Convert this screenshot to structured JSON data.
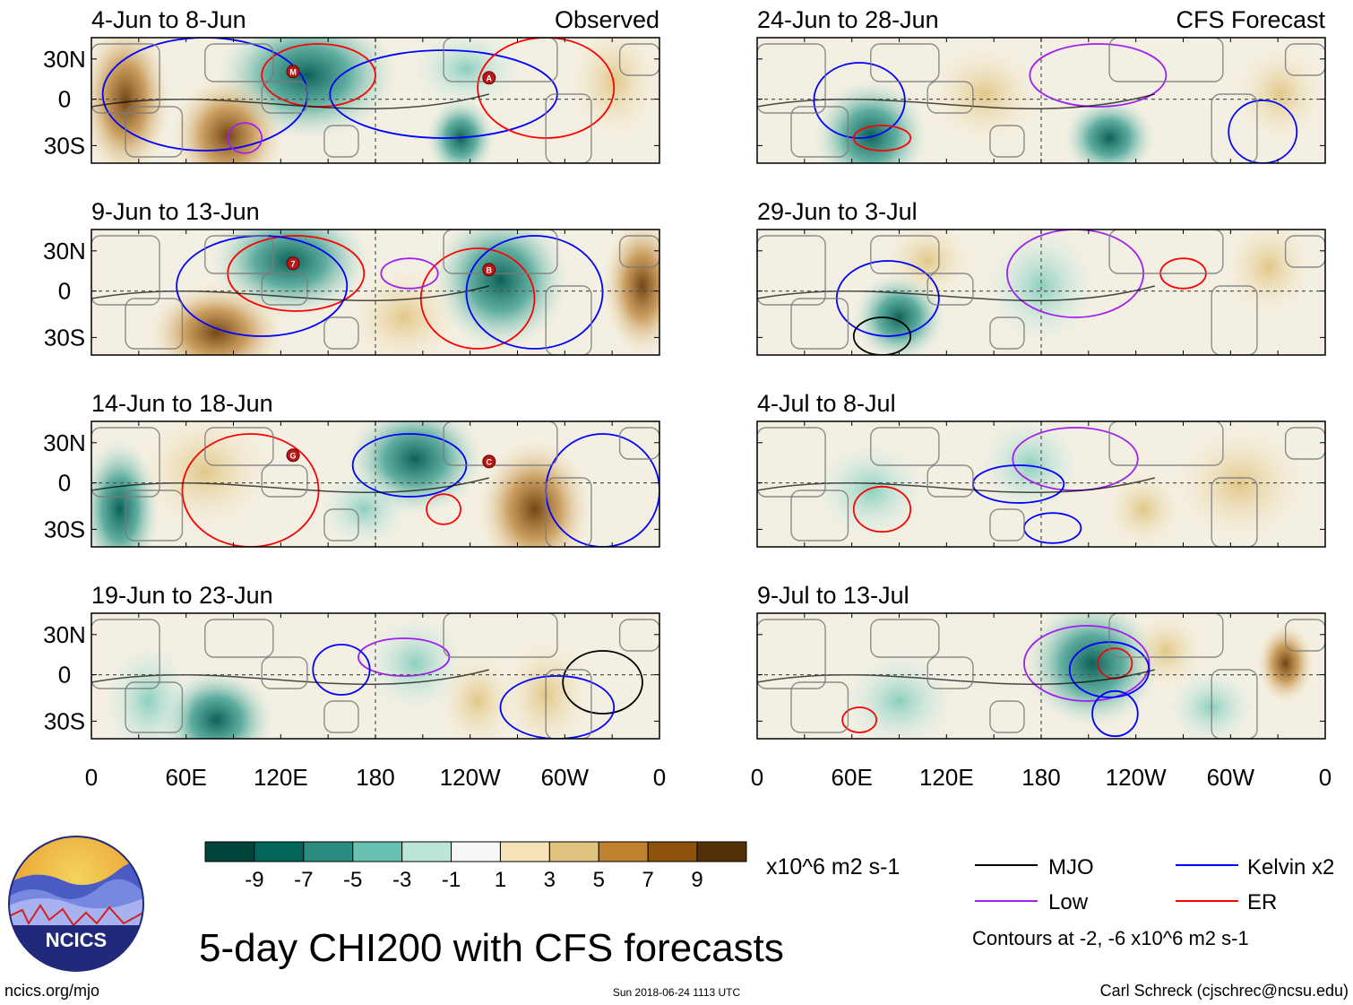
{
  "chart_data": {
    "type": "map-panels",
    "title": "5-day CHI200 with CFS forecasts",
    "observed_label": "Observed",
    "forecast_label": "CFS Forecast",
    "lat_labels": [
      "30N",
      "0",
      "30S"
    ],
    "lon_labels": [
      "0",
      "60E",
      "120E",
      "180",
      "120W",
      "60W",
      "0"
    ],
    "panels": [
      {
        "column": "observed",
        "period": "4-Jun to 8-Jun",
        "storms": [
          "M",
          "A"
        ]
      },
      {
        "column": "observed",
        "period": "9-Jun to 13-Jun",
        "storms": [
          "7",
          "B"
        ]
      },
      {
        "column": "observed",
        "period": "14-Jun to 18-Jun",
        "storms": [
          "G",
          "C"
        ]
      },
      {
        "column": "observed",
        "period": "19-Jun to 23-Jun",
        "storms": []
      },
      {
        "column": "forecast",
        "period": "24-Jun to 28-Jun",
        "storms": []
      },
      {
        "column": "forecast",
        "period": "29-Jun to 3-Jul",
        "storms": []
      },
      {
        "column": "forecast",
        "period": "4-Jul to 8-Jul",
        "storms": []
      },
      {
        "column": "forecast",
        "period": "9-Jul to 13-Jul",
        "storms": []
      }
    ],
    "colorbar": {
      "ticks": [
        "-9",
        "-7",
        "-5",
        "-3",
        "-1",
        "1",
        "3",
        "5",
        "7",
        "9"
      ],
      "colors": [
        "#00443a",
        "#00665c",
        "#2a8c80",
        "#6ac0af",
        "#bde6da",
        "#f7f7f7",
        "#f5e3b7",
        "#dfc27d",
        "#bf812d",
        "#8c510a",
        "#543005"
      ],
      "units": "x10^6 m2 s-1"
    },
    "legend": [
      {
        "label": "MJO",
        "color": "#000000"
      },
      {
        "label": "Kelvin x2",
        "color": "#0000ff"
      },
      {
        "label": "Low",
        "color": "#a020f0"
      },
      {
        "label": "ER",
        "color": "#ff0000"
      }
    ],
    "contour_note": "Contours at -2, -6 x10^6 m2 s-1"
  },
  "footer": {
    "org": "NCICS",
    "url": "ncics.org/mjo",
    "timestamp": "Sun 2018-06-24 1113 UTC",
    "author": "Carl Schreck (cjschrec@ncsu.edu)"
  }
}
